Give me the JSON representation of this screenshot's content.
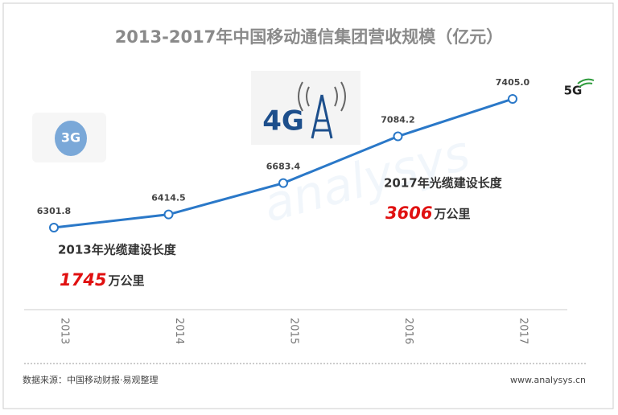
{
  "chart_data": {
    "type": "line",
    "title": "2013-2017年中国移动通信集团营收规模（亿元）",
    "categories": [
      "2013",
      "2014",
      "2015",
      "2016",
      "2017"
    ],
    "series": [
      {
        "values": [
          6301.8,
          6414.5,
          6683.4,
          7084.2,
          7405.0
        ],
        "value_labels": [
          "6301.8",
          "6414.5",
          "6683.4",
          "7084.2",
          "7405.0"
        ],
        "color": "#2a78c8"
      }
    ],
    "annotations": [
      {
        "label": "2013年光缆建设长度",
        "value": 1745,
        "unit": "万公里"
      },
      {
        "label": "2017年光缆建设长度",
        "value": 3606,
        "unit": "万公里"
      }
    ],
    "logos": [
      "3G",
      "4G",
      "5G"
    ],
    "source": "数据来源：中国移动财报·易观整理",
    "website": "www.analysys.cn"
  }
}
